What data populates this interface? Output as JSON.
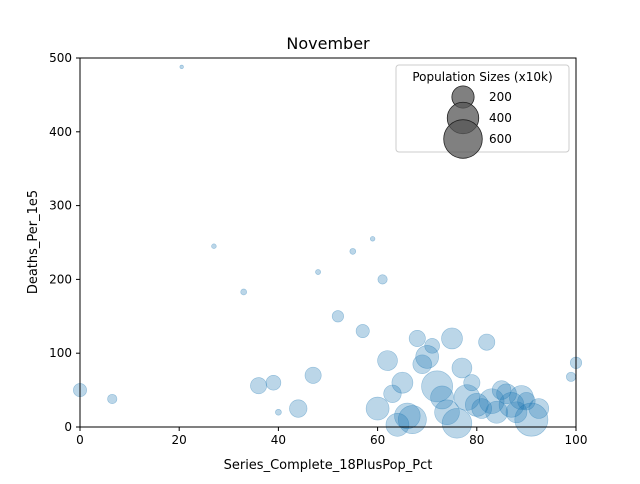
{
  "chart_data": {
    "type": "scatter",
    "title": "November",
    "xlabel": "Series_Complete_18PlusPop_Pct",
    "ylabel": "Deaths_Per_1e5",
    "xlim": [
      0,
      100
    ],
    "ylim": [
      0,
      500
    ],
    "xticks": [
      0,
      20,
      40,
      60,
      80,
      100
    ],
    "yticks": [
      0,
      100,
      200,
      300,
      400,
      500
    ],
    "grid": false,
    "point_color": "#1f77b4",
    "legend": {
      "title": "Population Sizes (x10k)",
      "placement": "top-right",
      "marker_color": "#555555",
      "entries": [
        {
          "label": "200",
          "size_value": 200
        },
        {
          "label": "400",
          "size_value": 400
        },
        {
          "label": "600",
          "size_value": 600
        }
      ]
    },
    "series": [
      {
        "size_unit": "population x10k",
        "points": [
          [
            0,
            50,
            40
          ],
          [
            6.5,
            38,
            20
          ],
          [
            20.5,
            488,
            3
          ],
          [
            27,
            245,
            5
          ],
          [
            33,
            183,
            8
          ],
          [
            36,
            56,
            60
          ],
          [
            39,
            60,
            50
          ],
          [
            40,
            20,
            8
          ],
          [
            48,
            210,
            6
          ],
          [
            55,
            238,
            8
          ],
          [
            59,
            255,
            5
          ],
          [
            60,
            25,
            120
          ],
          [
            62,
            90,
            90
          ],
          [
            63,
            45,
            70
          ],
          [
            66,
            15,
            150
          ],
          [
            67,
            10,
            180
          ],
          [
            68,
            120,
            60
          ],
          [
            70,
            95,
            120
          ],
          [
            72,
            55,
            220
          ],
          [
            73,
            40,
            120
          ],
          [
            74,
            20,
            140
          ],
          [
            75,
            120,
            100
          ],
          [
            76,
            5,
            200
          ],
          [
            77,
            80,
            90
          ],
          [
            78,
            40,
            150
          ],
          [
            79,
            60,
            60
          ],
          [
            80,
            30,
            120
          ],
          [
            81,
            25,
            90
          ],
          [
            82,
            115,
            60
          ],
          [
            83,
            35,
            140
          ],
          [
            84,
            20,
            110
          ],
          [
            85,
            50,
            80
          ],
          [
            86,
            45,
            90
          ],
          [
            87,
            30,
            140
          ],
          [
            88,
            20,
            100
          ],
          [
            89,
            40,
            130
          ],
          [
            90,
            35,
            70
          ],
          [
            91,
            10,
            250
          ],
          [
            92.5,
            25,
            90
          ],
          [
            99,
            68,
            20
          ],
          [
            100,
            87,
            30
          ],
          [
            44,
            25,
            70
          ],
          [
            47,
            70,
            60
          ],
          [
            64,
            3,
            120
          ],
          [
            69,
            85,
            80
          ],
          [
            57,
            130,
            40
          ],
          [
            52,
            150,
            30
          ],
          [
            61,
            200,
            20
          ],
          [
            71,
            110,
            50
          ],
          [
            65,
            60,
            100
          ]
        ]
      }
    ]
  }
}
